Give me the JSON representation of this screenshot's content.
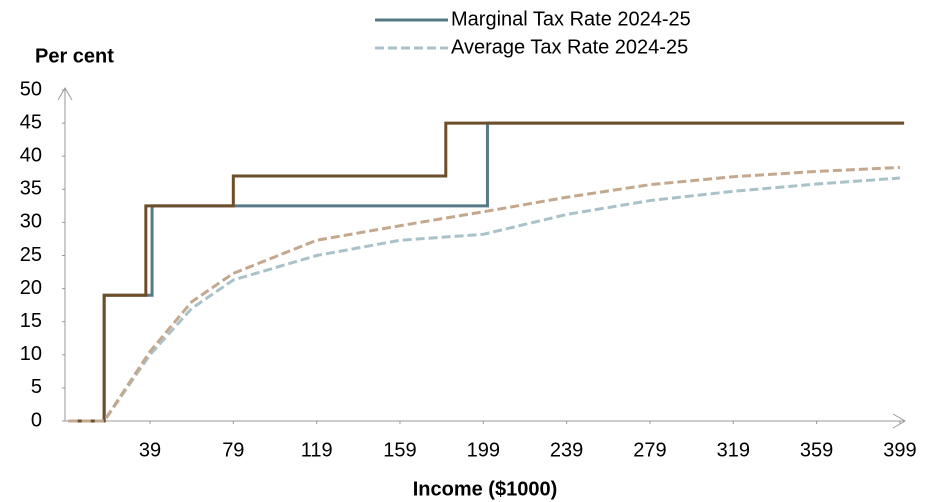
{
  "chart_data": {
    "type": "line",
    "y_label": "Per cent",
    "x_label": "Income ($1000)",
    "xlim": [
      0,
      400
    ],
    "ylim": [
      0,
      50
    ],
    "xticks": [
      39,
      79,
      119,
      159,
      199,
      239,
      279,
      319,
      359,
      399
    ],
    "yticks": [
      0,
      5,
      10,
      15,
      20,
      25,
      30,
      35,
      40,
      45,
      50
    ],
    "legend": "top",
    "series": [
      {
        "name": "Marginal Tax Rate 2024-25",
        "color": "#557a86",
        "dashed": false,
        "x": [
          0,
          17,
          17,
          40,
          40,
          201,
          201,
          401
        ],
        "values": [
          0,
          0,
          19,
          19,
          32.5,
          32.5,
          45,
          45
        ]
      },
      {
        "name": "Average Tax Rate 2024-25",
        "color": "#a9c2c9",
        "dashed": true,
        "x": [
          0,
          17,
          39,
          59,
          79,
          119,
          159,
          199,
          239,
          279,
          319,
          359,
          399
        ],
        "values": [
          0,
          0,
          10,
          17,
          21.3,
          25,
          27.3,
          28.2,
          31.2,
          33.3,
          34.7,
          35.8,
          36.7
        ]
      },
      {
        "color": "#6e4e2a",
        "dashed": false,
        "x": [
          0,
          17,
          17,
          37,
          37,
          79,
          79,
          181,
          181,
          401
        ],
        "values": [
          0,
          0,
          19,
          19,
          32.5,
          32.5,
          37,
          37,
          45,
          45
        ]
      },
      {
        "color": "#c4a88e",
        "dashed": true,
        "x": [
          0,
          17,
          39,
          59,
          79,
          119,
          159,
          199,
          239,
          279,
          319,
          359,
          399
        ],
        "values": [
          0,
          0,
          10.5,
          18,
          22.3,
          27.3,
          29.5,
          31.6,
          33.8,
          35.7,
          36.9,
          37.7,
          38.3
        ]
      }
    ]
  }
}
